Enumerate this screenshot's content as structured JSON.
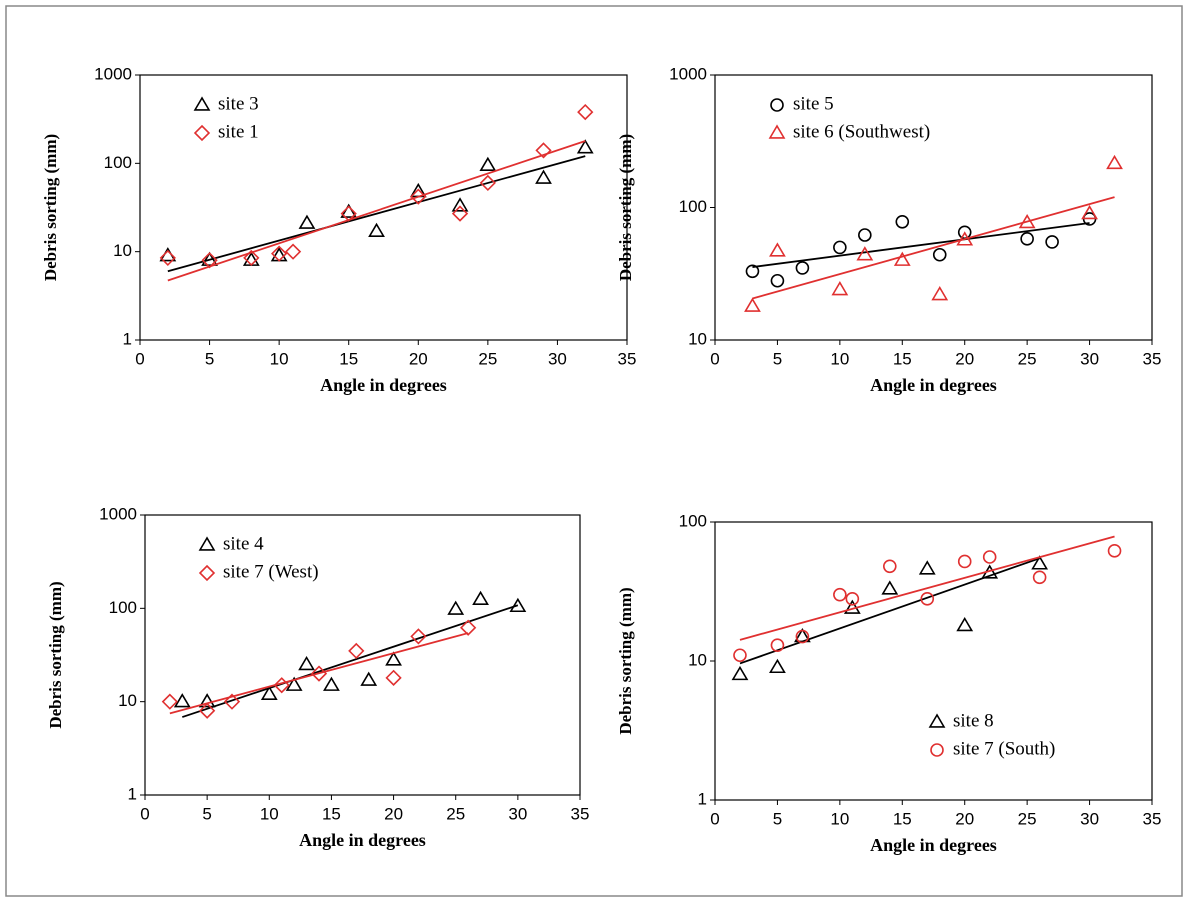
{
  "chart_data": [
    {
      "type": "scatter",
      "x_label": "Angle in degrees",
      "y_label": "Debris sorting (mm)",
      "xlim": [
        0,
        35
      ],
      "xticks": [
        0,
        5,
        10,
        15,
        20,
        25,
        30,
        35
      ],
      "ylim": [
        1,
        1000
      ],
      "yticks": [
        1,
        10,
        100,
        1000
      ],
      "log_y": true,
      "legend": "upper left",
      "trendline": true,
      "series": [
        {
          "name": "site 3",
          "color": "#000000",
          "marker": "triangle",
          "x": [
            2,
            5,
            8,
            10,
            12,
            15,
            17,
            20,
            23,
            25,
            29,
            32
          ],
          "values": [
            9,
            8,
            8,
            9,
            21,
            28,
            17,
            48,
            33,
            95,
            68,
            150
          ]
        },
        {
          "name": "site 1",
          "color": "#e03030",
          "marker": "diamond",
          "x": [
            2,
            5,
            8,
            10,
            11,
            15,
            20,
            23,
            25,
            29,
            32
          ],
          "values": [
            8.5,
            8,
            8.5,
            9.5,
            10,
            27,
            42,
            27,
            60,
            140,
            380
          ]
        }
      ]
    },
    {
      "type": "scatter",
      "x_label": "Angle in degrees",
      "y_label": "Debris sorting (mm)",
      "xlim": [
        0,
        35
      ],
      "xticks": [
        0,
        5,
        10,
        15,
        20,
        25,
        30,
        35
      ],
      "ylim": [
        10,
        1000
      ],
      "yticks": [
        10,
        100,
        1000
      ],
      "log_y": true,
      "legend": "upper left",
      "trendline": true,
      "series": [
        {
          "name": "site 5",
          "color": "#000000",
          "marker": "circle",
          "x": [
            3,
            5,
            7,
            10,
            12,
            15,
            18,
            20,
            25,
            27,
            30
          ],
          "values": [
            33,
            28,
            35,
            50,
            62,
            78,
            44,
            65,
            58,
            55,
            82
          ]
        },
        {
          "name": "site 6 (Southwest)",
          "color": "#e03030",
          "marker": "triangle",
          "x": [
            3,
            5,
            10,
            12,
            15,
            18,
            20,
            25,
            30,
            32
          ],
          "values": [
            18,
            47,
            24,
            44,
            40,
            22,
            57,
            77,
            90,
            215
          ]
        }
      ]
    },
    {
      "type": "scatter",
      "x_label": "Angle in degrees",
      "y_label": "Debris sorting (mm)",
      "xlim": [
        0,
        35
      ],
      "xticks": [
        0,
        5,
        10,
        15,
        20,
        25,
        30,
        35
      ],
      "ylim": [
        1,
        1000
      ],
      "yticks": [
        1,
        10,
        100,
        1000
      ],
      "log_y": true,
      "legend": "upper left",
      "trendline": true,
      "series": [
        {
          "name": "site 4",
          "color": "#000000",
          "marker": "triangle",
          "x": [
            3,
            5,
            10,
            12,
            13,
            15,
            18,
            20,
            25,
            27,
            30
          ],
          "values": [
            10,
            10,
            12,
            15,
            25,
            15,
            17,
            28,
            98,
            125,
            105
          ]
        },
        {
          "name": "site 7 (West)",
          "color": "#e03030",
          "marker": "diamond",
          "x": [
            2,
            5,
            7,
            11,
            14,
            17,
            20,
            22,
            26
          ],
          "values": [
            10,
            8,
            10,
            15,
            20,
            35,
            18,
            50,
            62
          ]
        }
      ]
    },
    {
      "type": "scatter",
      "x_label": "Angle in degrees",
      "y_label": "Debris sorting (mm)",
      "xlim": [
        0,
        35
      ],
      "xticks": [
        0,
        5,
        10,
        15,
        20,
        25,
        30,
        35
      ],
      "ylim": [
        1,
        100
      ],
      "yticks": [
        1,
        10,
        100
      ],
      "log_y": true,
      "legend": "lower right",
      "trendline": true,
      "series": [
        {
          "name": "site 8",
          "color": "#000000",
          "marker": "triangle",
          "x": [
            2,
            5,
            7,
            11,
            14,
            17,
            20,
            22,
            26
          ],
          "values": [
            8,
            9,
            15,
            24,
            33,
            46,
            18,
            43,
            50
          ]
        },
        {
          "name": "site 7 (South)",
          "color": "#e03030",
          "marker": "circle",
          "x": [
            2,
            5,
            7,
            10,
            11,
            14,
            17,
            20,
            22,
            26,
            32
          ],
          "values": [
            11,
            13,
            15,
            30,
            28,
            48,
            28,
            52,
            56,
            40,
            62
          ]
        }
      ]
    }
  ]
}
